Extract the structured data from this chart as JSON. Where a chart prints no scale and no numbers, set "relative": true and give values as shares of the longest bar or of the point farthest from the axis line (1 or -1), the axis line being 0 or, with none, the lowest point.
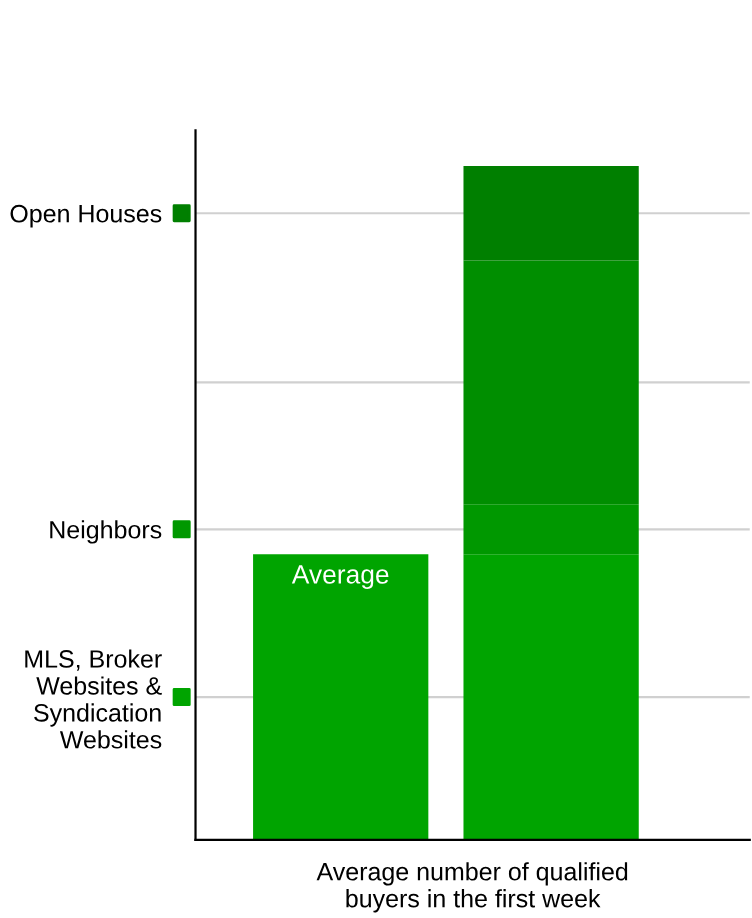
{
  "chart_data": {
    "type": "bar",
    "relative": true,
    "stacked": true,
    "categories": [
      "Average",
      null
    ],
    "xlabel": "Average number of qualified\nbuyers in the first week",
    "grid": "y",
    "legend": "left",
    "series": [
      {
        "name": "MLS, Broker\nWebsites &\nSyndication\nWebsites",
        "color": "#00a400",
        "values": [
          0.424,
          0.424
        ]
      },
      {
        "name": "Neighbors",
        "color": "#009800",
        "values": [
          null,
          0.074
        ]
      },
      {
        "color": "#008e00",
        "values": [
          null,
          0.362
        ]
      },
      {
        "name": "Open Houses",
        "color": "#007f00",
        "values": [
          null,
          0.14
        ]
      }
    ]
  }
}
